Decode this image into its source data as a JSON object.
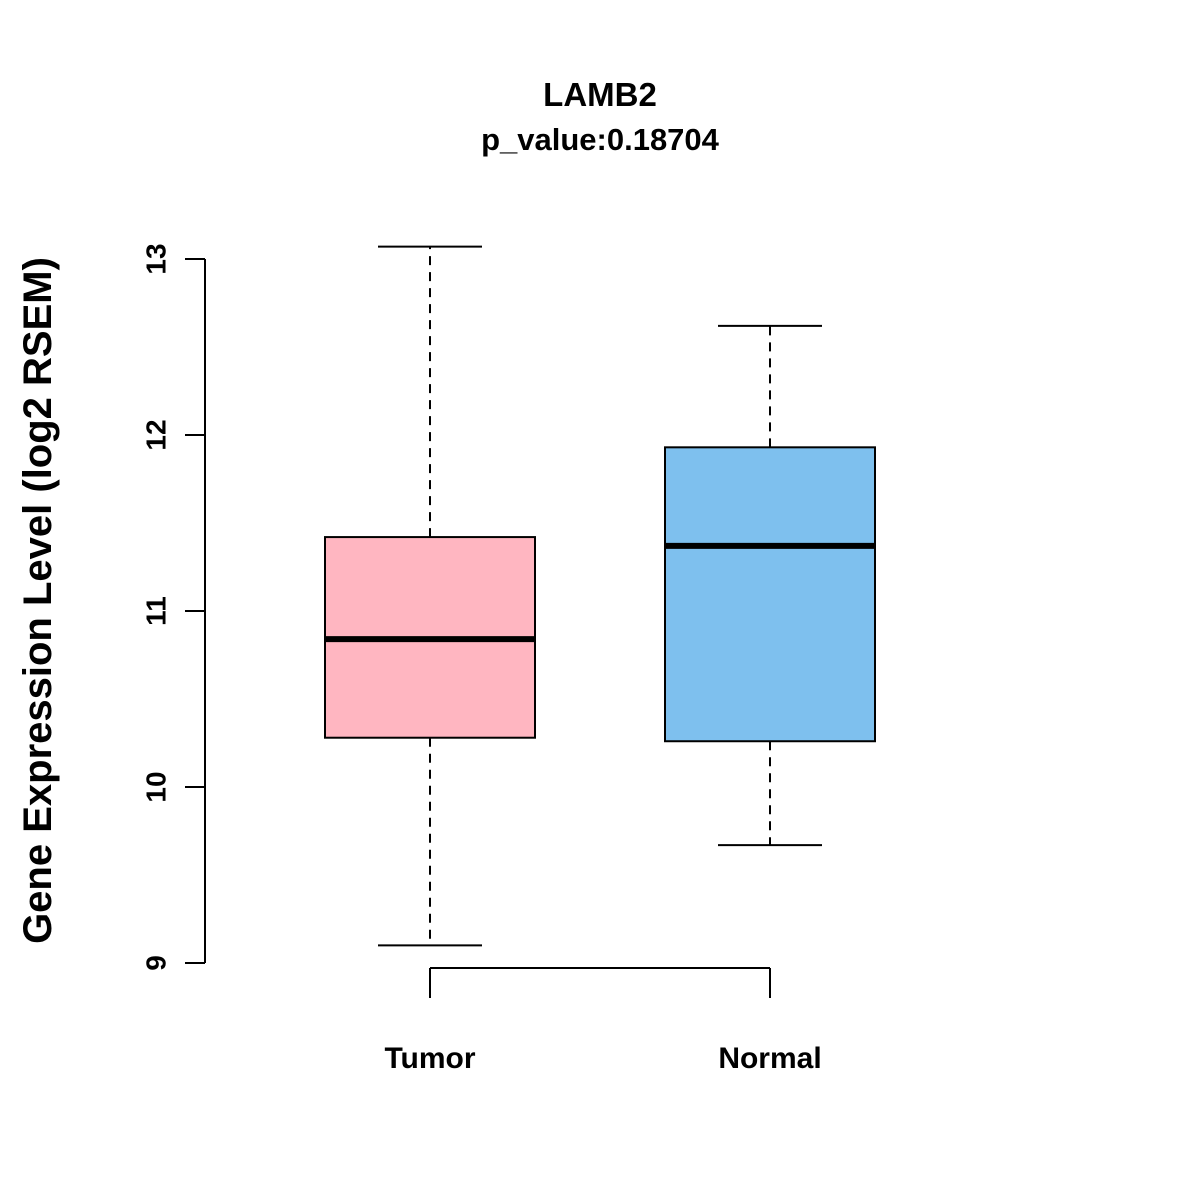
{
  "header": {
    "title": "LAMB2",
    "subtitle": "p_value:0.18704"
  },
  "axes": {
    "ylabel": "Gene Expression Level (log2 RSEM)"
  },
  "chart_data": {
    "type": "boxplot",
    "title": "LAMB2",
    "subtitle": "p_value:0.18704",
    "ylabel": "Gene Expression Level (log2 RSEM)",
    "xlabel": "",
    "categories": [
      "Tumor",
      "Normal"
    ],
    "yticks": [
      9,
      10,
      11,
      12,
      13
    ],
    "ylim": [
      8.8,
      13.2
    ],
    "grid": false,
    "legend": "none",
    "series": [
      {
        "name": "Tumor",
        "color": "#FFB6C1",
        "whisker_low": 9.1,
        "q1": 10.28,
        "median": 10.84,
        "q3": 11.42,
        "whisker_high": 13.07
      },
      {
        "name": "Normal",
        "color": "#7EC0EE",
        "whisker_low": 9.67,
        "q1": 10.26,
        "median": 11.37,
        "q3": 11.93,
        "whisker_high": 12.62
      }
    ]
  }
}
